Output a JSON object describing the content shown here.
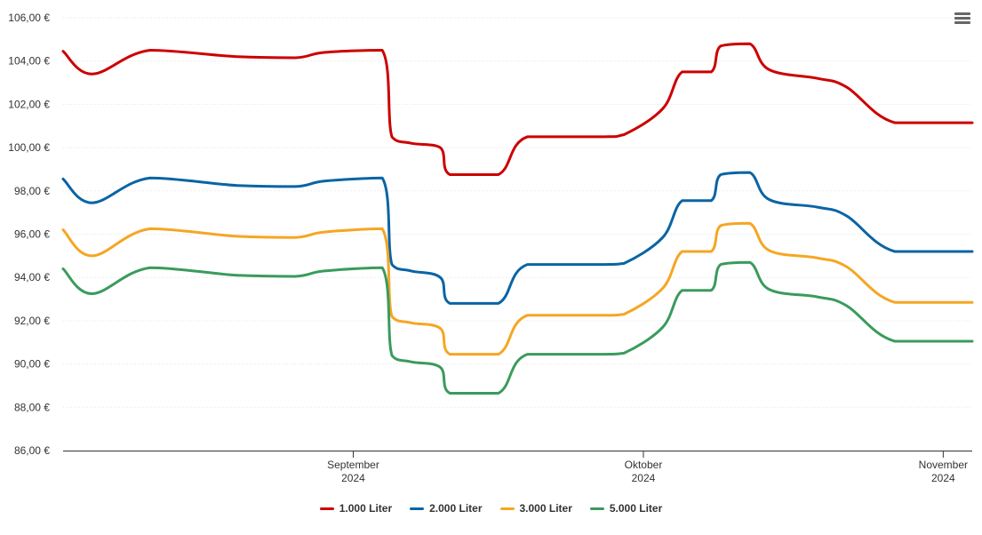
{
  "chart_data": {
    "type": "line",
    "title": "",
    "xlabel": "",
    "ylabel": "",
    "ylim": [
      86,
      106
    ],
    "y_ticks": [
      86,
      88,
      90,
      92,
      94,
      96,
      98,
      100,
      102,
      104,
      106
    ],
    "y_tick_labels": [
      "86,00 €",
      "88,00 €",
      "90,00 €",
      "92,00 €",
      "94,00 €",
      "96,00 €",
      "98,00 €",
      "100,00 €",
      "102,00 €",
      "104,00 €",
      "106,00 €"
    ],
    "x_range": [
      "2024-08-02",
      "2024-11-04"
    ],
    "x_ticks": [
      {
        "date": "2024-09-01",
        "label": "September",
        "year": "2024"
      },
      {
        "date": "2024-10-01",
        "label": "Oktober",
        "year": "2024"
      },
      {
        "date": "2024-11-01",
        "label": "November",
        "year": "2024"
      }
    ],
    "grid": true,
    "legend_position": "bottom-center",
    "x": [
      "2024-08-02",
      "2024-08-05",
      "2024-08-11",
      "2024-08-20",
      "2024-08-26",
      "2024-08-29",
      "2024-09-04",
      "2024-09-05",
      "2024-09-07",
      "2024-09-10",
      "2024-09-11",
      "2024-09-16",
      "2024-09-19",
      "2024-09-27",
      "2024-09-29",
      "2024-10-03",
      "2024-10-05",
      "2024-10-08",
      "2024-10-09",
      "2024-10-12",
      "2024-10-14",
      "2024-10-19",
      "2024-10-22",
      "2024-10-27",
      "2024-11-04"
    ],
    "series": [
      {
        "name": "1.000 Liter",
        "color": "#cc0000",
        "values": [
          104.45,
          103.4,
          104.5,
          104.2,
          104.15,
          104.4,
          104.5,
          100.5,
          100.2,
          100.0,
          98.75,
          98.75,
          100.5,
          100.5,
          100.6,
          101.8,
          103.5,
          103.5,
          104.7,
          104.8,
          103.6,
          103.2,
          102.8,
          101.15,
          101.15
        ]
      },
      {
        "name": "2.000 Liter",
        "color": "#0a64a4",
        "values": [
          98.55,
          97.45,
          98.6,
          98.25,
          98.2,
          98.45,
          98.6,
          94.6,
          94.3,
          94.0,
          92.8,
          92.8,
          94.6,
          94.6,
          94.65,
          95.85,
          97.55,
          97.55,
          98.75,
          98.85,
          97.6,
          97.25,
          96.85,
          95.2,
          95.2
        ]
      },
      {
        "name": "3.000 Liter",
        "color": "#f5a623",
        "values": [
          96.2,
          95.0,
          96.25,
          95.9,
          95.85,
          96.1,
          96.25,
          92.2,
          91.9,
          91.65,
          90.45,
          90.45,
          92.25,
          92.25,
          92.3,
          93.5,
          95.2,
          95.2,
          96.4,
          96.5,
          95.25,
          94.9,
          94.5,
          92.85,
          92.85
        ]
      },
      {
        "name": "5.000 Liter",
        "color": "#3a9b5c",
        "values": [
          94.4,
          93.25,
          94.45,
          94.1,
          94.05,
          94.3,
          94.45,
          90.4,
          90.1,
          89.85,
          88.65,
          88.65,
          90.45,
          90.45,
          90.5,
          91.7,
          93.4,
          93.4,
          94.6,
          94.7,
          93.45,
          93.1,
          92.7,
          91.05,
          91.05
        ]
      }
    ]
  },
  "legend": {
    "items": [
      "1.000 Liter",
      "2.000 Liter",
      "3.000 Liter",
      "5.000 Liter"
    ]
  },
  "toolbar": {
    "menu_icon": "hamburger-menu-icon"
  }
}
